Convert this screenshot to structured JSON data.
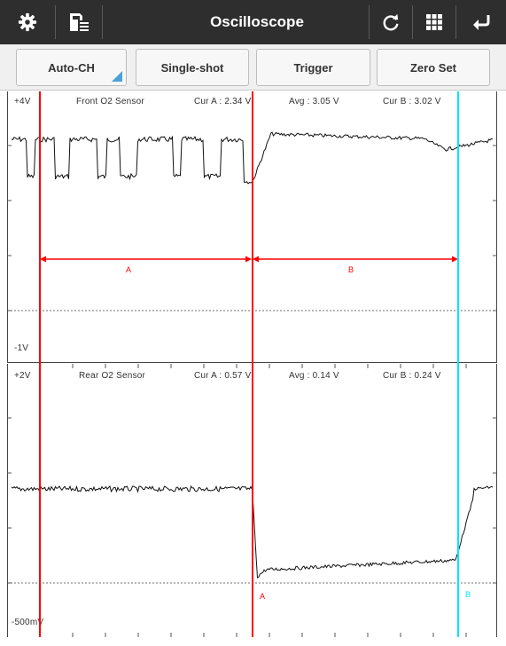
{
  "window": {
    "title": "Oscilloscope"
  },
  "toolbar": {
    "left_icons": [
      "settings-gear-icon",
      "save-list-icon"
    ],
    "right_icons": [
      "refresh-icon",
      "grid-icon",
      "back-return-icon"
    ]
  },
  "buttons": {
    "auto_ch": "Auto-CH",
    "single_shot": "Single-shot",
    "trigger": "Trigger",
    "zero_set": "Zero Set"
  },
  "channels": [
    {
      "name": "Front O2 Sensor",
      "max_label": "+4V",
      "min_label": "-1V",
      "cur_a": "Cur A : 2.34 V",
      "avg": "Avg : 3.05 V",
      "cur_b": "Cur B : 3.02 V",
      "interval_labels": {
        "a": "A",
        "b": "B"
      }
    },
    {
      "name": "Rear O2 Sensor",
      "max_label": "+2V",
      "min_label": "-500mV",
      "cur_a": "Cur A : 0.57 V",
      "avg": "Avg : 0.14 V",
      "cur_b": "Cur B : 0.24 V",
      "cursor_labels": {
        "a": "A",
        "b": "B"
      }
    }
  ],
  "colors": {
    "cursor_a": "#ff0000",
    "cursor_b": "#00e5ff",
    "interval_arrow": "#ff0000",
    "trace": "#111111",
    "toolbar_bg": "#2e2e2e",
    "accent": "#4aa3d6"
  }
}
